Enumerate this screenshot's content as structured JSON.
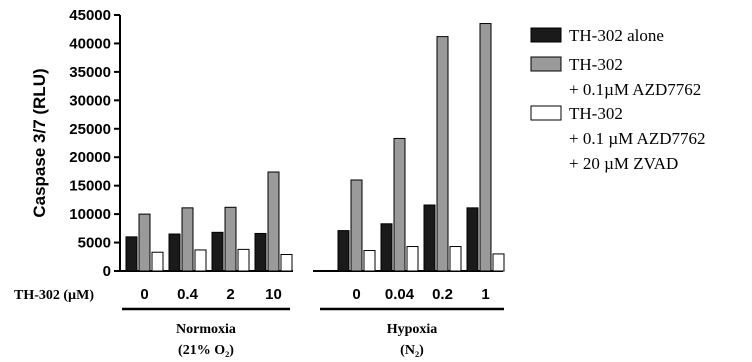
{
  "chart_data": {
    "type": "bar",
    "ylabel": "Caspase 3/7 (RLU)",
    "ylim": [
      0,
      45000
    ],
    "yticks": [
      0,
      5000,
      10000,
      15000,
      20000,
      25000,
      30000,
      35000,
      40000,
      45000
    ],
    "x_axis_title": "TH-302 (µM)",
    "groups": [
      {
        "name_line1": "Normoxia",
        "name_line2": "(21% O₂)",
        "categories": [
          "0",
          "0.4",
          "2",
          "10"
        ]
      },
      {
        "name_line1": "Hypoxia",
        "name_line2": "(N₂)",
        "categories": [
          "0",
          "0.04",
          "0.2",
          "1"
        ]
      }
    ],
    "series": [
      {
        "name": "TH-302 alone",
        "color": "#1a1a1a",
        "values": [
          6000,
          6500,
          6800,
          6600,
          7100,
          8300,
          11600,
          11100
        ]
      },
      {
        "name": "TH-302\n+ 0.1µM AZD7762",
        "color": "#9a9a9a",
        "values": [
          10000,
          11100,
          11200,
          17400,
          16000,
          23300,
          41200,
          43500
        ]
      },
      {
        "name": "TH-302\n+ 0.1 µM AZD7762\n+ 20 µM ZVAD",
        "color": "#ffffff",
        "values": [
          3300,
          3700,
          3800,
          2900,
          3600,
          4300,
          4300,
          3000
        ]
      }
    ],
    "legend_position": "right"
  }
}
